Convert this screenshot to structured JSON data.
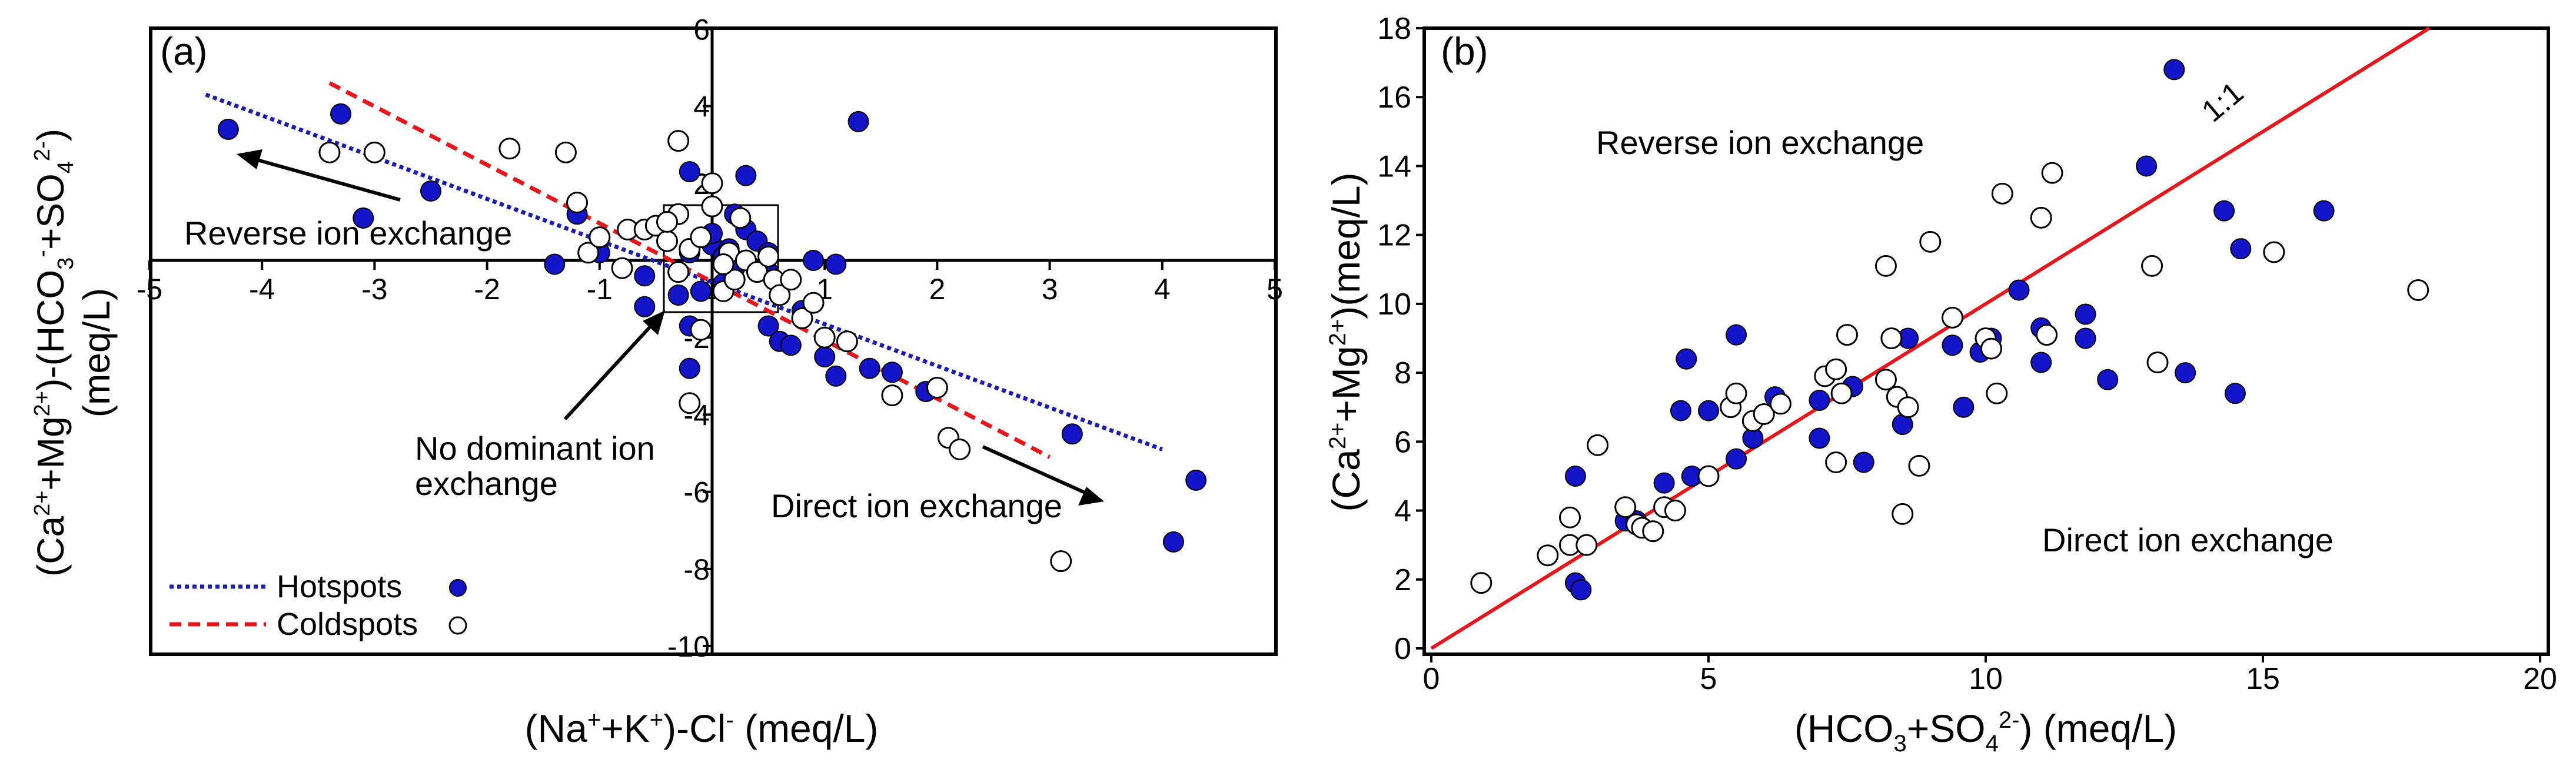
{
  "chart_data": [
    {
      "panel": "(a)",
      "type": "scatter",
      "xlabel": {
        "base": "(Na",
        "sup1": "+",
        "mid": "+K",
        "sup2": "+",
        "mid2": ")-Cl",
        "sup3": "-",
        "unit": " (meq/L)"
      },
      "ylabel": {
        "line1": "(Ca2+ +Mg2+)-(HCO3- +SO42-)",
        "line2": "(meq/L)"
      },
      "xlim": [
        -5,
        5
      ],
      "ylim": [
        -10,
        6
      ],
      "xticks": [
        -5,
        -4,
        -3,
        -2,
        -1,
        0,
        1,
        2,
        3,
        4,
        5
      ],
      "yticks": [
        -10,
        -8,
        -6,
        -4,
        -2,
        0,
        2,
        4,
        6
      ],
      "xtick_labels": [
        "-5",
        "-4",
        "-3",
        "-2",
        "-1",
        "0",
        "1",
        "2",
        "3",
        "4",
        "5"
      ],
      "ytick_labels": [
        "-10",
        "-8",
        "-6",
        "-4",
        "-2",
        "",
        "2",
        "4",
        "6"
      ],
      "series": [
        {
          "name": "Hotspots",
          "marker": "filled",
          "color": "#1414c8",
          "points": [
            [
              -4.3,
              3.4
            ],
            [
              -3.3,
              3.8
            ],
            [
              -3.1,
              1.1
            ],
            [
              -2.5,
              1.8
            ],
            [
              -1.2,
              1.2
            ],
            [
              -1.4,
              -0.1
            ],
            [
              -1.0,
              0.2
            ],
            [
              -0.6,
              -0.4
            ],
            [
              -0.6,
              -1.2
            ],
            [
              -0.3,
              -0.9
            ],
            [
              -0.2,
              -1.7
            ],
            [
              -0.2,
              -2.8
            ],
            [
              -0.2,
              0.2
            ],
            [
              -0.1,
              -0.8
            ],
            [
              0.0,
              0.4
            ],
            [
              0.0,
              0.7
            ],
            [
              0.1,
              -0.6
            ],
            [
              0.1,
              0.1
            ],
            [
              0.15,
              0.3
            ],
            [
              0.2,
              -0.2
            ],
            [
              0.2,
              1.2
            ],
            [
              0.3,
              2.2
            ],
            [
              0.3,
              0.8
            ],
            [
              0.4,
              0.5
            ],
            [
              0.5,
              -0.3
            ],
            [
              0.5,
              0.2
            ],
            [
              -0.2,
              2.3
            ],
            [
              0.5,
              -1.7
            ],
            [
              0.6,
              -2.1
            ],
            [
              0.7,
              -2.2
            ],
            [
              0.8,
              -1.3
            ],
            [
              0.9,
              0.0
            ],
            [
              1.0,
              -2.5
            ],
            [
              1.1,
              -0.1
            ],
            [
              1.1,
              -3.0
            ],
            [
              1.3,
              3.6
            ],
            [
              1.4,
              -2.8
            ],
            [
              1.6,
              -2.9
            ],
            [
              1.9,
              -3.4
            ],
            [
              3.2,
              -4.5
            ],
            [
              4.1,
              -7.3
            ],
            [
              4.3,
              -5.7
            ]
          ]
        },
        {
          "name": "Coldspots",
          "marker": "open",
          "color": "#000000",
          "points": [
            [
              -3.4,
              2.8
            ],
            [
              -3.0,
              2.8
            ],
            [
              -1.8,
              2.9
            ],
            [
              -1.3,
              2.8
            ],
            [
              -1.2,
              1.5
            ],
            [
              -1.1,
              0.2
            ],
            [
              -1.0,
              0.6
            ],
            [
              -0.8,
              -0.2
            ],
            [
              -0.75,
              0.8
            ],
            [
              -0.6,
              0.8
            ],
            [
              -0.5,
              0.9
            ],
            [
              -0.4,
              0.5
            ],
            [
              -0.3,
              1.2
            ],
            [
              -0.3,
              -0.3
            ],
            [
              -0.2,
              0.3
            ],
            [
              -0.1,
              0.6
            ],
            [
              -0.1,
              -1.8
            ],
            [
              0.0,
              1.4
            ],
            [
              0.0,
              2.0
            ],
            [
              0.1,
              -0.8
            ],
            [
              0.15,
              0.2
            ],
            [
              0.2,
              -0.5
            ],
            [
              0.25,
              1.1
            ],
            [
              0.3,
              0.0
            ],
            [
              0.4,
              -0.3
            ],
            [
              0.5,
              0.1
            ],
            [
              0.55,
              -0.5
            ],
            [
              0.6,
              -0.9
            ],
            [
              0.7,
              -0.5
            ],
            [
              0.8,
              -1.5
            ],
            [
              0.9,
              -1.1
            ],
            [
              1.0,
              -2.0
            ],
            [
              1.2,
              -2.1
            ],
            [
              1.6,
              -3.5
            ],
            [
              2.0,
              -3.3
            ],
            [
              2.1,
              -4.6
            ],
            [
              2.2,
              -4.9
            ],
            [
              3.1,
              -7.8
            ],
            [
              -0.2,
              -3.7
            ],
            [
              -0.3,
              3.1
            ],
            [
              -0.4,
              1.0
            ],
            [
              0.1,
              -0.1
            ]
          ]
        }
      ],
      "trendlines": [
        {
          "name": "Hotspots",
          "style": "dotted",
          "color": "#1a1ab4",
          "x": [
            -4.5,
            4.0
          ],
          "y": [
            4.3,
            -4.9
          ]
        },
        {
          "name": "Coldspots",
          "style": "dashed",
          "color": "#e8161b",
          "x": [
            -3.4,
            3.0
          ],
          "y": [
            4.6,
            -5.1
          ]
        }
      ],
      "annotations": [
        {
          "text": "Reverse ion exchange",
          "at": "upper-left"
        },
        {
          "text": "No dominant ion",
          "text2": "exchange",
          "at": "center-bottom"
        },
        {
          "text": "Direct ion exchange",
          "at": "lower-right"
        }
      ],
      "legend": {
        "position": "bottom-left",
        "entries": [
          {
            "label": "Hotspots",
            "line": "dotted",
            "marker": "filled"
          },
          {
            "label": "Coldspots",
            "line": "dashed",
            "marker": "open"
          }
        ]
      }
    },
    {
      "panel": "(b)",
      "type": "scatter",
      "xlabel": "(HCO3+SO42-) (meq/L)",
      "ylabel": "(Ca2+ +Mg2+)(meq/L)",
      "xlim": [
        0,
        20
      ],
      "ylim": [
        0,
        18
      ],
      "xticks": [
        0,
        5,
        10,
        15,
        20
      ],
      "yticks": [
        0,
        2,
        4,
        6,
        8,
        10,
        12,
        14,
        16,
        18
      ],
      "xtick_labels": [
        "0",
        "5",
        "10",
        "15",
        "20"
      ],
      "ytick_labels": [
        "0",
        "2",
        "4",
        "6",
        "8",
        "10",
        "12",
        "14",
        "16",
        "18"
      ],
      "series": [
        {
          "name": "Hotspots",
          "marker": "filled",
          "color": "#1414c8",
          "points": [
            [
              2.6,
              5.0
            ],
            [
              2.6,
              1.9
            ],
            [
              2.7,
              1.7
            ],
            [
              3.5,
              3.7
            ],
            [
              3.7,
              3.7
            ],
            [
              4.2,
              4.8
            ],
            [
              4.5,
              6.9
            ],
            [
              4.6,
              8.4
            ],
            [
              4.7,
              5.0
            ],
            [
              5.0,
              6.9
            ],
            [
              5.5,
              9.1
            ],
            [
              5.5,
              5.5
            ],
            [
              5.8,
              6.1
            ],
            [
              6.2,
              7.3
            ],
            [
              7.0,
              6.1
            ],
            [
              7.0,
              7.2
            ],
            [
              7.6,
              7.6
            ],
            [
              7.8,
              5.4
            ],
            [
              8.5,
              6.5
            ],
            [
              8.6,
              9.0
            ],
            [
              9.4,
              8.8
            ],
            [
              9.6,
              7.0
            ],
            [
              9.9,
              8.6
            ],
            [
              10.1,
              9.0
            ],
            [
              10.6,
              10.4
            ],
            [
              11.0,
              8.3
            ],
            [
              11.0,
              9.3
            ],
            [
              11.8,
              9.7
            ],
            [
              11.8,
              9.0
            ],
            [
              12.2,
              7.8
            ],
            [
              12.9,
              14.0
            ],
            [
              13.4,
              16.8
            ],
            [
              13.6,
              8.0
            ],
            [
              14.3,
              12.7
            ],
            [
              14.5,
              7.4
            ],
            [
              14.6,
              11.6
            ],
            [
              16.1,
              12.7
            ]
          ]
        },
        {
          "name": "Coldspots",
          "marker": "open",
          "color": "#000000",
          "points": [
            [
              0.9,
              1.9
            ],
            [
              2.1,
              2.7
            ],
            [
              2.5,
              3.8
            ],
            [
              2.5,
              3.0
            ],
            [
              2.8,
              3.0
            ],
            [
              3.0,
              5.9
            ],
            [
              3.5,
              4.1
            ],
            [
              3.7,
              3.6
            ],
            [
              3.8,
              3.5
            ],
            [
              4.0,
              3.4
            ],
            [
              4.2,
              4.1
            ],
            [
              4.4,
              4.0
            ],
            [
              5.0,
              5.0
            ],
            [
              5.4,
              7.0
            ],
            [
              5.5,
              7.4
            ],
            [
              5.8,
              6.6
            ],
            [
              6.0,
              6.8
            ],
            [
              6.3,
              7.1
            ],
            [
              7.1,
              7.9
            ],
            [
              7.3,
              8.1
            ],
            [
              7.3,
              5.4
            ],
            [
              7.4,
              7.4
            ],
            [
              7.5,
              9.1
            ],
            [
              8.2,
              11.1
            ],
            [
              8.2,
              7.8
            ],
            [
              8.3,
              9.0
            ],
            [
              8.4,
              7.3
            ],
            [
              8.5,
              3.9
            ],
            [
              8.6,
              7.0
            ],
            [
              8.8,
              5.3
            ],
            [
              9.0,
              11.8
            ],
            [
              9.4,
              9.6
            ],
            [
              10.0,
              9.0
            ],
            [
              10.1,
              8.7
            ],
            [
              10.2,
              7.4
            ],
            [
              10.3,
              13.2
            ],
            [
              11.0,
              12.5
            ],
            [
              11.1,
              9.1
            ],
            [
              11.2,
              13.8
            ],
            [
              13.0,
              11.1
            ],
            [
              13.1,
              8.3
            ],
            [
              15.2,
              11.5
            ],
            [
              17.8,
              10.4
            ]
          ]
        }
      ],
      "reference_line": {
        "label": "1:1",
        "color": "#e8161b",
        "x": [
          0,
          18
        ],
        "y": [
          0,
          18
        ]
      },
      "annotations": [
        {
          "text": "Reverse ion exchange",
          "at": "upper-left"
        },
        {
          "text": "Direct ion exchange",
          "at": "lower-right"
        }
      ]
    }
  ]
}
